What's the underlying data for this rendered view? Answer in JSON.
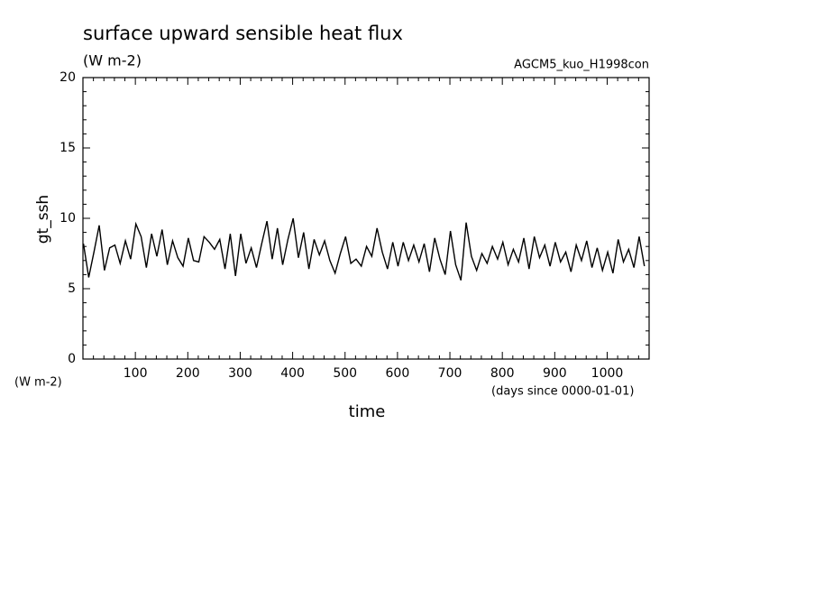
{
  "chart_data": {
    "type": "line",
    "title": "surface upward sensible heat flux",
    "subtitle": "(W m-2)",
    "annotation": "AGCM5_kuo_H1998con",
    "y_label": "gt_ssh",
    "y_unit": "(W m-2)",
    "x_label": "time",
    "x_unit": "(days since 0000-01-01)",
    "color": "#000000",
    "x": [
      1,
      11,
      21,
      31,
      41,
      51,
      61,
      71,
      81,
      91,
      101,
      111,
      121,
      131,
      141,
      151,
      161,
      171,
      181,
      191,
      201,
      211,
      221,
      231,
      241,
      251,
      261,
      271,
      281,
      291,
      301,
      311,
      321,
      331,
      341,
      351,
      361,
      371,
      381,
      391,
      401,
      411,
      421,
      431,
      441,
      451,
      461,
      471,
      481,
      491,
      501,
      511,
      521,
      531,
      541,
      551,
      561,
      571,
      581,
      591,
      601,
      611,
      621,
      631,
      641,
      651,
      661,
      671,
      681,
      691,
      701,
      711,
      721,
      731,
      741,
      751,
      761,
      771,
      781,
      791,
      801,
      811,
      821,
      831,
      841,
      851,
      861,
      871,
      881,
      891,
      901,
      911,
      921,
      931,
      941,
      951,
      961,
      971,
      981,
      991,
      1001,
      1011,
      1021,
      1031,
      1041,
      1051,
      1061,
      1071
    ],
    "values": [
      8.2,
      5.8,
      7.6,
      9.5,
      6.3,
      7.9,
      8.1,
      6.8,
      8.4,
      7.1,
      9.6,
      8.7,
      6.5,
      8.9,
      7.3,
      9.2,
      6.7,
      8.4,
      7.2,
      6.6,
      8.6,
      7.0,
      6.9,
      8.7,
      8.3,
      7.8,
      8.5,
      6.4,
      8.9,
      5.9,
      8.9,
      6.8,
      7.9,
      6.5,
      8.2,
      9.8,
      7.1,
      9.3,
      6.7,
      8.5,
      10.0,
      7.2,
      9.0,
      6.4,
      8.5,
      7.4,
      8.4,
      7.0,
      6.1,
      7.5,
      8.7,
      6.8,
      7.1,
      6.6,
      8.0,
      7.3,
      9.3,
      7.6,
      6.4,
      8.3,
      6.6,
      8.3,
      7.0,
      8.1,
      6.9,
      8.2,
      6.2,
      8.6,
      7.1,
      6.0,
      9.1,
      6.7,
      5.6,
      9.7,
      7.3,
      6.3,
      7.5,
      6.8,
      8.0,
      7.1,
      8.3,
      6.7,
      7.8,
      6.9,
      8.6,
      6.4,
      8.7,
      7.2,
      8.1,
      6.6,
      8.3,
      6.9,
      7.6,
      6.2,
      8.1,
      7.0,
      8.4,
      6.5,
      7.9,
      6.3,
      7.6,
      6.1,
      8.5,
      6.9,
      7.8,
      6.5,
      8.7,
      6.6
    ],
    "xlim": [
      0,
      1080
    ],
    "ylim": [
      0,
      20
    ],
    "xticks": [
      100,
      200,
      300,
      400,
      500,
      600,
      700,
      800,
      900,
      1000
    ],
    "yticks": [
      0,
      5,
      10,
      15,
      20
    ],
    "xminorticks": [
      20,
      40,
      60,
      80,
      120,
      140,
      160,
      180,
      220,
      240,
      260,
      280,
      320,
      340,
      360,
      380,
      420,
      440,
      460,
      480,
      520,
      540,
      560,
      580,
      620,
      640,
      660,
      680,
      720,
      740,
      760,
      780,
      820,
      840,
      860,
      880,
      920,
      940,
      960,
      980,
      1020,
      1040,
      1060
    ],
    "yminorticks": [
      1,
      2,
      3,
      4,
      6,
      7,
      8,
      9,
      11,
      12,
      13,
      14,
      16,
      17,
      18,
      19
    ]
  }
}
